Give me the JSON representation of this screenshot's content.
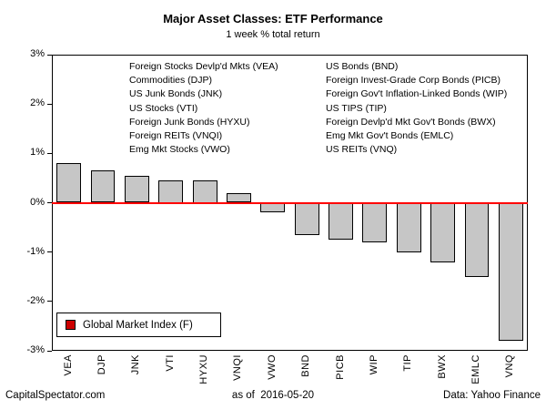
{
  "title": "Major Asset Classes: ETF Performance",
  "subtitle": "1 week % total return",
  "footer": {
    "left": "CapitalSpectator.com",
    "center": "as of  2016-05-20",
    "right": "Data: Yahoo Finance"
  },
  "legend_box": {
    "label": "Global Market Index (F)",
    "marker_color": "#cc0000"
  },
  "asset_legend": {
    "left_column": [
      "Foreign Stocks Devlp'd Mkts (VEA)",
      "Commodities (DJP)",
      "US Junk Bonds (JNK)",
      "US Stocks (VTI)",
      "Foreign Junk Bonds (HYXU)",
      "Foreign REITs (VNQI)",
      "Emg Mkt Stocks (VWO)"
    ],
    "right_column": [
      "US Bonds (BND)",
      "Foreign Invest-Grade Corp Bonds (PICB)",
      "Foreign Gov't Inflation-Linked Bonds (WIP)",
      "US TIPS (TIP)",
      "Foreign Devlp'd Mkt Gov't Bonds (BWX)",
      "Emg Mkt Gov't Bonds (EMLC)",
      "US REITs (VNQ)"
    ]
  },
  "chart_data": {
    "type": "bar",
    "title": "Major Asset Classes: ETF Performance",
    "subtitle": "1 week % total return",
    "categories": [
      "VEA",
      "DJP",
      "JNK",
      "VTI",
      "HYXU",
      "VNQI",
      "VWO",
      "BND",
      "PICB",
      "WIP",
      "TIP",
      "BWX",
      "EMLC",
      "VNQ"
    ],
    "values": [
      0.8,
      0.65,
      0.55,
      0.45,
      0.45,
      0.2,
      -0.2,
      -0.65,
      -0.75,
      -0.8,
      -1.0,
      -1.2,
      -1.5,
      -2.8
    ],
    "xlabel": "",
    "ylabel": "",
    "ylim": [
      -3,
      3
    ],
    "ytick_values": [
      3,
      2,
      1,
      0,
      -1,
      -2,
      -3
    ],
    "ytick_labels": [
      "3%",
      "2%",
      "1%",
      "0%",
      "-1%",
      "-2%",
      "-3%"
    ],
    "grid": false,
    "zero_line_color": "#ff0000",
    "bar_fill": "#c6c6c6",
    "bar_border": "#000000",
    "legend_position": "bottom-left"
  }
}
